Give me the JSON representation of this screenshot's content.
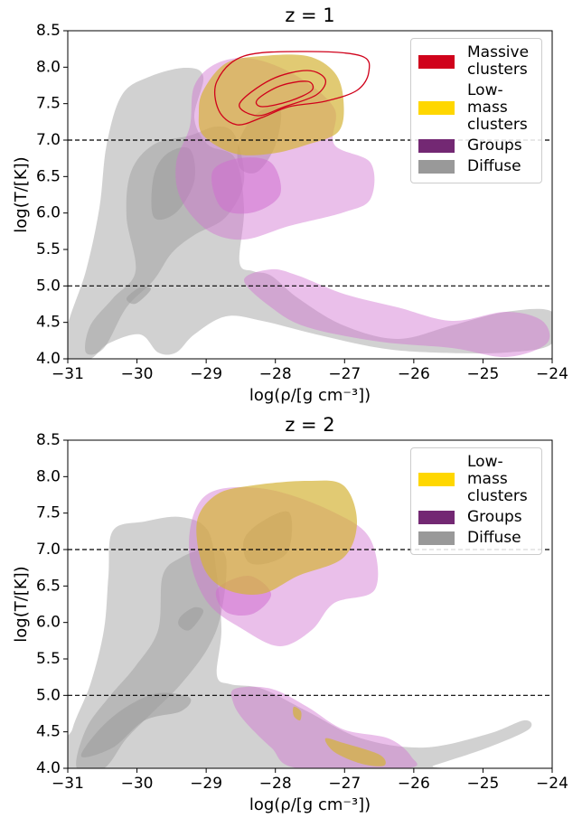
{
  "chart_data": [
    {
      "type": "density-contour",
      "title": "z = 1",
      "xlabel": "log(ρ/[g cm⁻³])",
      "ylabel": "log(T/[K])",
      "xlim": [
        -31,
        -24
      ],
      "ylim": [
        4.0,
        8.5
      ],
      "xticks": [
        {
          "value": -31,
          "label": "−31"
        },
        {
          "value": -30,
          "label": "−30"
        },
        {
          "value": -29,
          "label": "−29"
        },
        {
          "value": -28,
          "label": "−28"
        },
        {
          "value": -27,
          "label": "−27"
        },
        {
          "value": -26,
          "label": "−26"
        },
        {
          "value": -25,
          "label": "−25"
        },
        {
          "value": -24,
          "label": "−24"
        }
      ],
      "yticks": [
        {
          "value": 4,
          "label": "4.0"
        },
        {
          "value": 4.5,
          "label": "4.5"
        },
        {
          "value": 5,
          "label": "5.0"
        },
        {
          "value": 5.5,
          "label": "5.5"
        },
        {
          "value": 6,
          "label": "6.0"
        },
        {
          "value": 6.5,
          "label": "6.5"
        },
        {
          "value": 7,
          "label": "7.0"
        },
        {
          "value": 7.5,
          "label": "7.5"
        },
        {
          "value": 8,
          "label": "8.0"
        },
        {
          "value": 8.5,
          "label": "8.5"
        }
      ],
      "hlines": [
        7.0,
        5.0
      ],
      "legend": "upper right",
      "series": [
        {
          "name": "Massive clusters",
          "color": "#d0021b"
        },
        {
          "name": "Low-mass clusters",
          "color": "#ffd700"
        },
        {
          "name": "Groups",
          "color": "#732873"
        },
        {
          "name": "Diffuse",
          "color": "#999999"
        }
      ]
    },
    {
      "type": "density-contour",
      "title": "z = 2",
      "xlabel": "log(ρ/[g cm⁻³])",
      "ylabel": "log(T/[K])",
      "xlim": [
        -31,
        -24
      ],
      "ylim": [
        4.0,
        8.5
      ],
      "xticks": [
        {
          "value": -31,
          "label": "−31"
        },
        {
          "value": -30,
          "label": "−30"
        },
        {
          "value": -29,
          "label": "−29"
        },
        {
          "value": -28,
          "label": "−28"
        },
        {
          "value": -27,
          "label": "−27"
        },
        {
          "value": -26,
          "label": "−26"
        },
        {
          "value": -25,
          "label": "−25"
        },
        {
          "value": -24,
          "label": "−24"
        }
      ],
      "yticks": [
        {
          "value": 4,
          "label": "4.0"
        },
        {
          "value": 4.5,
          "label": "4.5"
        },
        {
          "value": 5,
          "label": "5.0"
        },
        {
          "value": 5.5,
          "label": "5.5"
        },
        {
          "value": 6,
          "label": "6.0"
        },
        {
          "value": 6.5,
          "label": "6.5"
        },
        {
          "value": 7,
          "label": "7.0"
        },
        {
          "value": 7.5,
          "label": "7.5"
        },
        {
          "value": 8,
          "label": "8.0"
        },
        {
          "value": 8.5,
          "label": "8.5"
        }
      ],
      "hlines": [
        7.0,
        5.0
      ],
      "legend": "upper right",
      "series": [
        {
          "name": "Low-mass clusters",
          "color": "#ffd700"
        },
        {
          "name": "Groups",
          "color": "#732873"
        },
        {
          "name": "Diffuse",
          "color": "#999999"
        }
      ]
    }
  ]
}
